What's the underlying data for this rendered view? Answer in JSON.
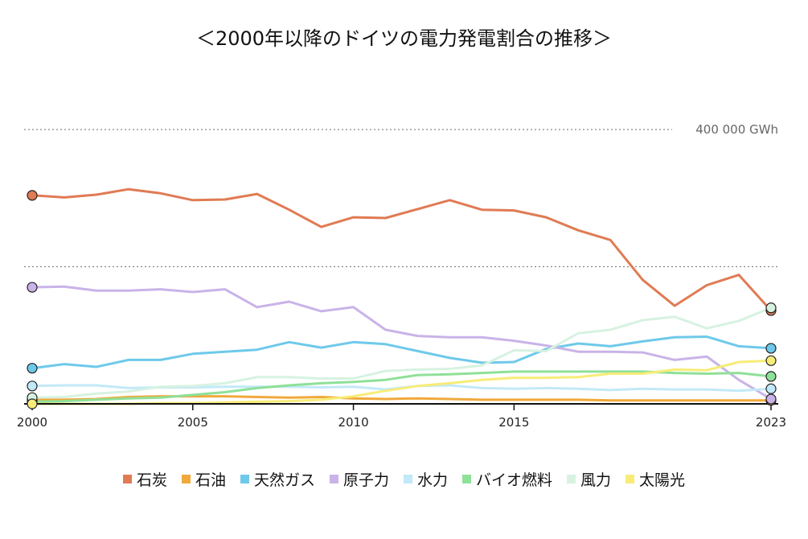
{
  "chart_data": {
    "type": "line",
    "title": "＜2000年以降のドイツの電力発電割合の推移＞",
    "x": [
      2000,
      2001,
      2002,
      2003,
      2004,
      2005,
      2006,
      2007,
      2008,
      2009,
      2010,
      2011,
      2012,
      2013,
      2014,
      2015,
      2016,
      2017,
      2018,
      2019,
      2020,
      2021,
      2022,
      2023
    ],
    "x_ticks": [
      "2000",
      "2005",
      "2010",
      "2015",
      "2023"
    ],
    "ylim": [
      0,
      400000
    ],
    "gridlines": [
      {
        "value": 400000,
        "label": "400 000 GWh"
      },
      {
        "value": 200000,
        "label": ""
      }
    ],
    "legend_position": "bottom",
    "series": [
      {
        "name": "石炭",
        "color": "#e07b54",
        "values": [
          304000,
          301000,
          305000,
          313000,
          307000,
          297000,
          298000,
          306000,
          283000,
          258000,
          272000,
          271000,
          284000,
          297000,
          283000,
          282000,
          272000,
          253000,
          239000,
          181000,
          143000,
          173000,
          188000,
          136000
        ]
      },
      {
        "name": "石油",
        "color": "#f0a93c",
        "values": [
          6000,
          6000,
          7000,
          10000,
          11000,
          11000,
          11000,
          10000,
          9000,
          10000,
          8000,
          7000,
          8000,
          7000,
          6000,
          6000,
          6000,
          6000,
          5000,
          5000,
          5000,
          5000,
          5000,
          5000
        ]
      },
      {
        "name": "天然ガス",
        "color": "#6ec9ea",
        "values": [
          52000,
          58000,
          54000,
          64000,
          64000,
          73000,
          76000,
          79000,
          90000,
          82000,
          90000,
          87000,
          77000,
          67000,
          60000,
          61000,
          80000,
          88000,
          84000,
          91000,
          97000,
          98000,
          84000,
          81000
        ]
      },
      {
        "name": "原子力",
        "color": "#c9b3e8",
        "values": [
          170000,
          171000,
          165000,
          165000,
          167000,
          163000,
          167000,
          141000,
          149000,
          135000,
          141000,
          108000,
          99000,
          97000,
          97000,
          92000,
          85000,
          76000,
          76000,
          75000,
          64000,
          69000,
          35000,
          7000
        ]
      },
      {
        "name": "水力",
        "color": "#c2e9f8",
        "values": [
          26000,
          27000,
          27000,
          23000,
          24000,
          24000,
          25000,
          25000,
          25000,
          24000,
          25000,
          21000,
          26000,
          27000,
          23000,
          22000,
          23000,
          22000,
          20000,
          22000,
          21000,
          21000,
          19000,
          22000
        ]
      },
      {
        "name": "バイオ燃料",
        "color": "#8fe098",
        "values": [
          3000,
          4000,
          6000,
          8000,
          9000,
          13000,
          17000,
          23000,
          27000,
          30000,
          32000,
          35000,
          42000,
          43000,
          45000,
          47000,
          47000,
          47000,
          47000,
          47000,
          45000,
          44000,
          45000,
          40000
        ]
      },
      {
        "name": "風力",
        "color": "#d7f2e1",
        "values": [
          9000,
          10000,
          15000,
          18000,
          25000,
          26000,
          30000,
          39000,
          39000,
          37000,
          37000,
          48000,
          50000,
          51000,
          56000,
          78000,
          77000,
          103000,
          108000,
          122000,
          127000,
          110000,
          121000,
          140000
        ]
      },
      {
        "name": "太陽光",
        "color": "#f7ec78",
        "values": [
          0,
          0,
          0,
          0,
          1000,
          1000,
          2000,
          3000,
          4000,
          6000,
          11000,
          19000,
          26000,
          30000,
          35000,
          38000,
          38000,
          39000,
          44000,
          44000,
          50000,
          49000,
          61000,
          63000
        ]
      }
    ]
  }
}
